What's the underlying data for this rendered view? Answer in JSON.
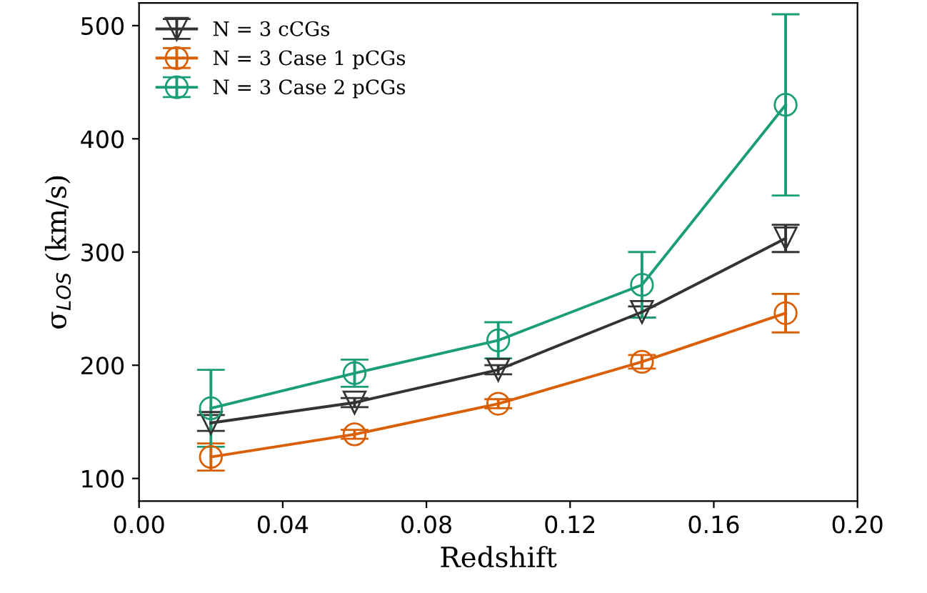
{
  "chart_data": {
    "type": "line",
    "xlabel": "Redshift",
    "ylabel": "σ$_{LOS}$ (km/s)",
    "x": [
      0.02,
      0.06,
      0.1,
      0.14,
      0.18
    ],
    "series": [
      {
        "name": "N = 3 cCGs",
        "color": "#333333",
        "marker": "triangle",
        "values": [
          149,
          167,
          196,
          247,
          312
        ],
        "errors": [
          7,
          4,
          4,
          5,
          12
        ]
      },
      {
        "name": "N = 3 Case 1 pCGs",
        "color": "#d95f02",
        "marker": "circle",
        "values": [
          119,
          139,
          166,
          203,
          246
        ],
        "errors": [
          12,
          4,
          4,
          6,
          17
        ]
      },
      {
        "name": "N = 3 Case 2 pCGs",
        "color": "#1b9e77",
        "marker": "circle",
        "values": [
          162,
          193,
          222,
          271,
          430
        ],
        "errors": [
          34,
          12,
          16,
          29,
          80
        ]
      }
    ],
    "xlim": [
      0.0,
      0.2
    ],
    "xticks": [
      {
        "value": 0.0,
        "label": "0.00"
      },
      {
        "value": 0.04,
        "label": "0.04"
      },
      {
        "value": 0.08,
        "label": "0.08"
      },
      {
        "value": 0.12,
        "label": "0.12"
      },
      {
        "value": 0.16,
        "label": "0.16"
      },
      {
        "value": 0.2,
        "label": "0.20"
      }
    ],
    "ylim": [
      80,
      520
    ],
    "yticks": [
      100,
      200,
      300,
      400,
      500
    ],
    "legend": "top left",
    "grid": false
  }
}
